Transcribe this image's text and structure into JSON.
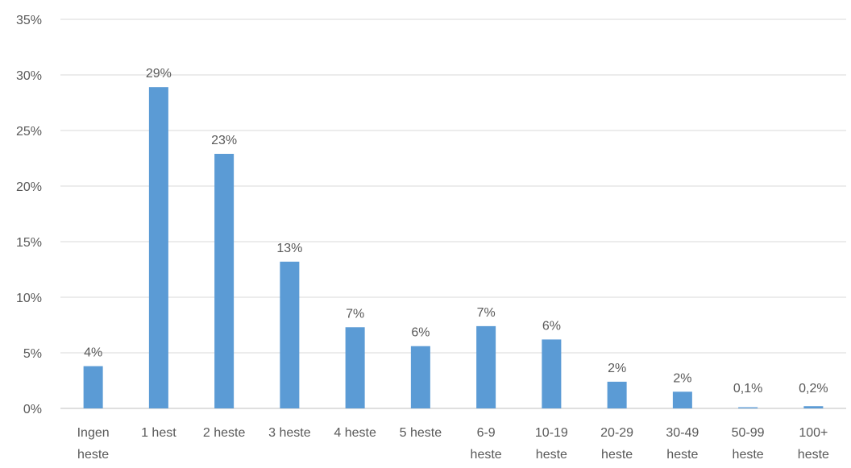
{
  "chart_data": {
    "type": "bar",
    "title": "",
    "xlabel": "",
    "ylabel": "",
    "ylim": [
      0,
      35
    ],
    "yticks": [
      "0%",
      "5%",
      "10%",
      "15%",
      "20%",
      "25%",
      "30%",
      "35%"
    ],
    "ytick_values": [
      0,
      5,
      10,
      15,
      20,
      25,
      30,
      35
    ],
    "grid": true,
    "legend": "none",
    "bar_color": "#5b9bd5",
    "categories": [
      [
        "Ingen",
        "heste"
      ],
      [
        "1 hest"
      ],
      [
        "2 heste"
      ],
      [
        "3 heste"
      ],
      [
        "4 heste"
      ],
      [
        "5 heste"
      ],
      [
        "6-9",
        "heste"
      ],
      [
        "10-19",
        "heste"
      ],
      [
        "20-29",
        "heste"
      ],
      [
        "30-49",
        "heste"
      ],
      [
        "50-99",
        "heste"
      ],
      [
        "100+",
        "heste"
      ]
    ],
    "values": [
      3.8,
      28.9,
      22.9,
      13.2,
      7.3,
      5.6,
      7.4,
      6.2,
      2.4,
      1.5,
      0.1,
      0.2
    ],
    "data_labels": [
      "4%",
      "29%",
      "23%",
      "13%",
      "7%",
      "6%",
      "7%",
      "6%",
      "2%",
      "2%",
      "0,1%",
      "0,2%"
    ]
  }
}
